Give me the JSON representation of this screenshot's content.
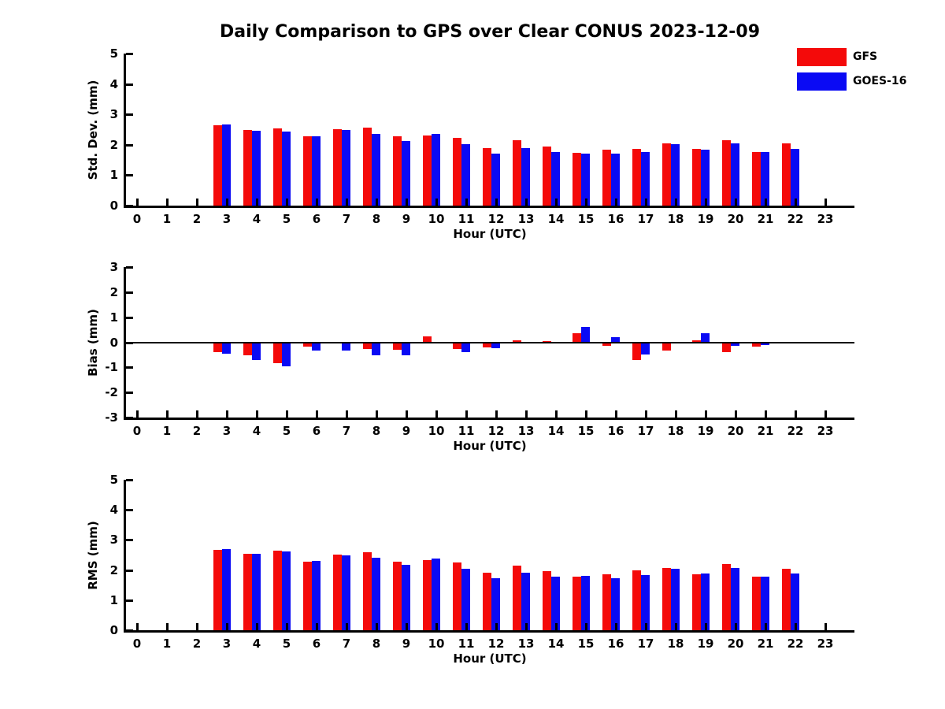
{
  "title": "Daily Comparison to GPS over Clear CONUS 2023-12-09",
  "legend": [
    {
      "label": "GFS",
      "color": "#f40a0a"
    },
    {
      "label": "GOES-16",
      "color": "#0a0af4"
    }
  ],
  "chart_data": [
    {
      "type": "bar",
      "ylabel": "Std. Dev. (mm)",
      "xlabel": "Hour (UTC)",
      "ylim": [
        0,
        5
      ],
      "yticks": [
        0,
        1,
        2,
        3,
        4,
        5
      ],
      "categories": [
        0,
        1,
        2,
        3,
        4,
        5,
        6,
        7,
        8,
        9,
        10,
        11,
        12,
        13,
        14,
        15,
        16,
        17,
        18,
        19,
        20,
        21,
        22,
        23
      ],
      "legend_position": "upper-right-outside",
      "grid": false,
      "series": [
        {
          "name": "GFS",
          "color": "#f40a0a",
          "values": [
            null,
            null,
            null,
            2.64,
            2.49,
            2.53,
            2.28,
            2.51,
            2.57,
            2.27,
            2.31,
            2.24,
            1.9,
            2.14,
            1.95,
            1.74,
            1.84,
            1.86,
            2.04,
            1.86,
            2.15,
            1.75,
            2.04,
            null
          ]
        },
        {
          "name": "GOES-16",
          "color": "#0a0af4",
          "values": [
            null,
            null,
            null,
            2.67,
            2.45,
            2.43,
            2.28,
            2.48,
            2.37,
            2.13,
            2.36,
            2.01,
            1.71,
            1.89,
            1.77,
            1.7,
            1.71,
            1.76,
            2.02,
            1.84,
            2.05,
            1.75,
            1.87,
            null
          ]
        }
      ]
    },
    {
      "type": "bar",
      "ylabel": "Bias (mm)",
      "xlabel": "Hour (UTC)",
      "ylim": [
        -3,
        3
      ],
      "yticks": [
        -3,
        -2,
        -1,
        0,
        1,
        2,
        3
      ],
      "categories": [
        0,
        1,
        2,
        3,
        4,
        5,
        6,
        7,
        8,
        9,
        10,
        11,
        12,
        13,
        14,
        15,
        16,
        17,
        18,
        19,
        20,
        21,
        22,
        23
      ],
      "zero_line": true,
      "grid": false,
      "series": [
        {
          "name": "GFS",
          "color": "#f40a0a",
          "values": [
            null,
            null,
            null,
            -0.39,
            -0.53,
            -0.83,
            -0.18,
            -0.03,
            -0.27,
            -0.3,
            0.24,
            -0.26,
            -0.2,
            0.08,
            0.06,
            0.35,
            -0.13,
            -0.7,
            -0.32,
            0.08,
            -0.4,
            -0.18,
            0.0,
            null
          ]
        },
        {
          "name": "GOES-16",
          "color": "#0a0af4",
          "values": [
            null,
            null,
            null,
            -0.45,
            -0.7,
            -0.97,
            -0.34,
            -0.33,
            -0.51,
            -0.53,
            0.0,
            -0.38,
            -0.23,
            0.0,
            0.0,
            0.61,
            0.19,
            -0.48,
            -0.04,
            0.35,
            -0.13,
            -0.1,
            0.03,
            null
          ]
        }
      ]
    },
    {
      "type": "bar",
      "ylabel": "RMS (mm)",
      "xlabel": "Hour (UTC)",
      "ylim": [
        0,
        5
      ],
      "yticks": [
        0,
        1,
        2,
        3,
        4,
        5
      ],
      "categories": [
        0,
        1,
        2,
        3,
        4,
        5,
        6,
        7,
        8,
        9,
        10,
        11,
        12,
        13,
        14,
        15,
        16,
        17,
        18,
        19,
        20,
        21,
        22,
        23
      ],
      "grid": false,
      "series": [
        {
          "name": "GFS",
          "color": "#f40a0a",
          "values": [
            null,
            null,
            null,
            2.67,
            2.54,
            2.65,
            2.29,
            2.52,
            2.58,
            2.28,
            2.32,
            2.25,
            1.92,
            2.15,
            1.96,
            1.78,
            1.85,
            1.99,
            2.07,
            1.87,
            2.19,
            1.77,
            2.05,
            null
          ]
        },
        {
          "name": "GOES-16",
          "color": "#0a0af4",
          "values": [
            null,
            null,
            null,
            2.7,
            2.53,
            2.61,
            2.3,
            2.49,
            2.41,
            2.18,
            2.37,
            2.04,
            1.73,
            1.91,
            1.79,
            1.81,
            1.73,
            1.82,
            2.04,
            1.88,
            2.07,
            1.77,
            1.88,
            null
          ]
        }
      ]
    }
  ]
}
